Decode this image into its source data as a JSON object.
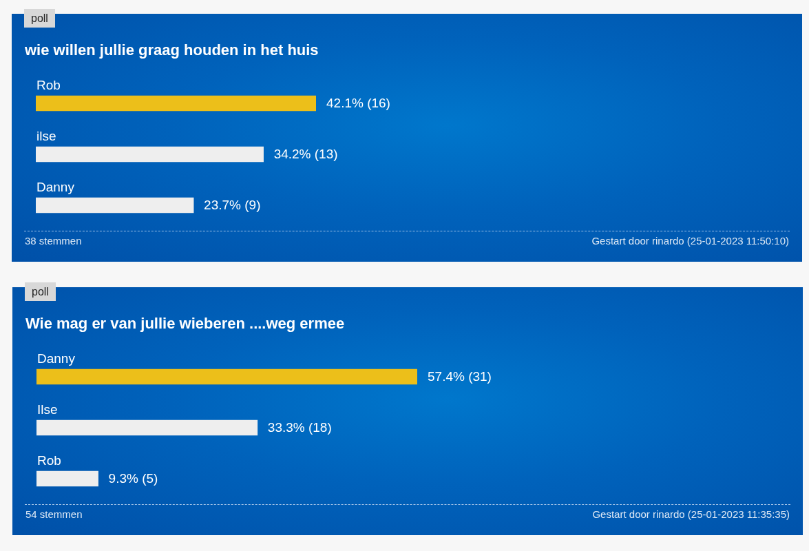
{
  "chart_data": [
    {
      "type": "bar",
      "orientation": "horizontal",
      "title": "wie willen jullie graag houden in het huis",
      "categories": [
        "Rob",
        "ilse",
        "Danny"
      ],
      "values": [
        42.1,
        34.2,
        23.7
      ],
      "colors": [
        "#ecbf1a",
        "#eeeeee",
        "#eeeeee"
      ],
      "value_labels": [
        "42.1% (16)",
        "34.2% (13)",
        "23.7% (9)"
      ],
      "tick_labels": false,
      "annotations": [
        "poll",
        "38 stemmen",
        "Gestart door rinardo (25-01-2023 11:50:10)"
      ]
    },
    {
      "type": "bar",
      "orientation": "horizontal",
      "title": "Wie mag er van jullie wieberen ....weg ermee",
      "categories": [
        "Danny",
        "Ilse",
        "Rob"
      ],
      "values": [
        57.4,
        33.3,
        9.3
      ],
      "colors": [
        "#ecbf1a",
        "#eeeeee",
        "#eeeeee"
      ],
      "value_labels": [
        "57.4% (31)",
        "33.3% (18)",
        "9.3% (5)"
      ],
      "tick_labels": false,
      "annotations": [
        "poll",
        "54 stemmen",
        "Gestart door rinardo (25-01-2023 11:35:35)"
      ]
    }
  ]
}
